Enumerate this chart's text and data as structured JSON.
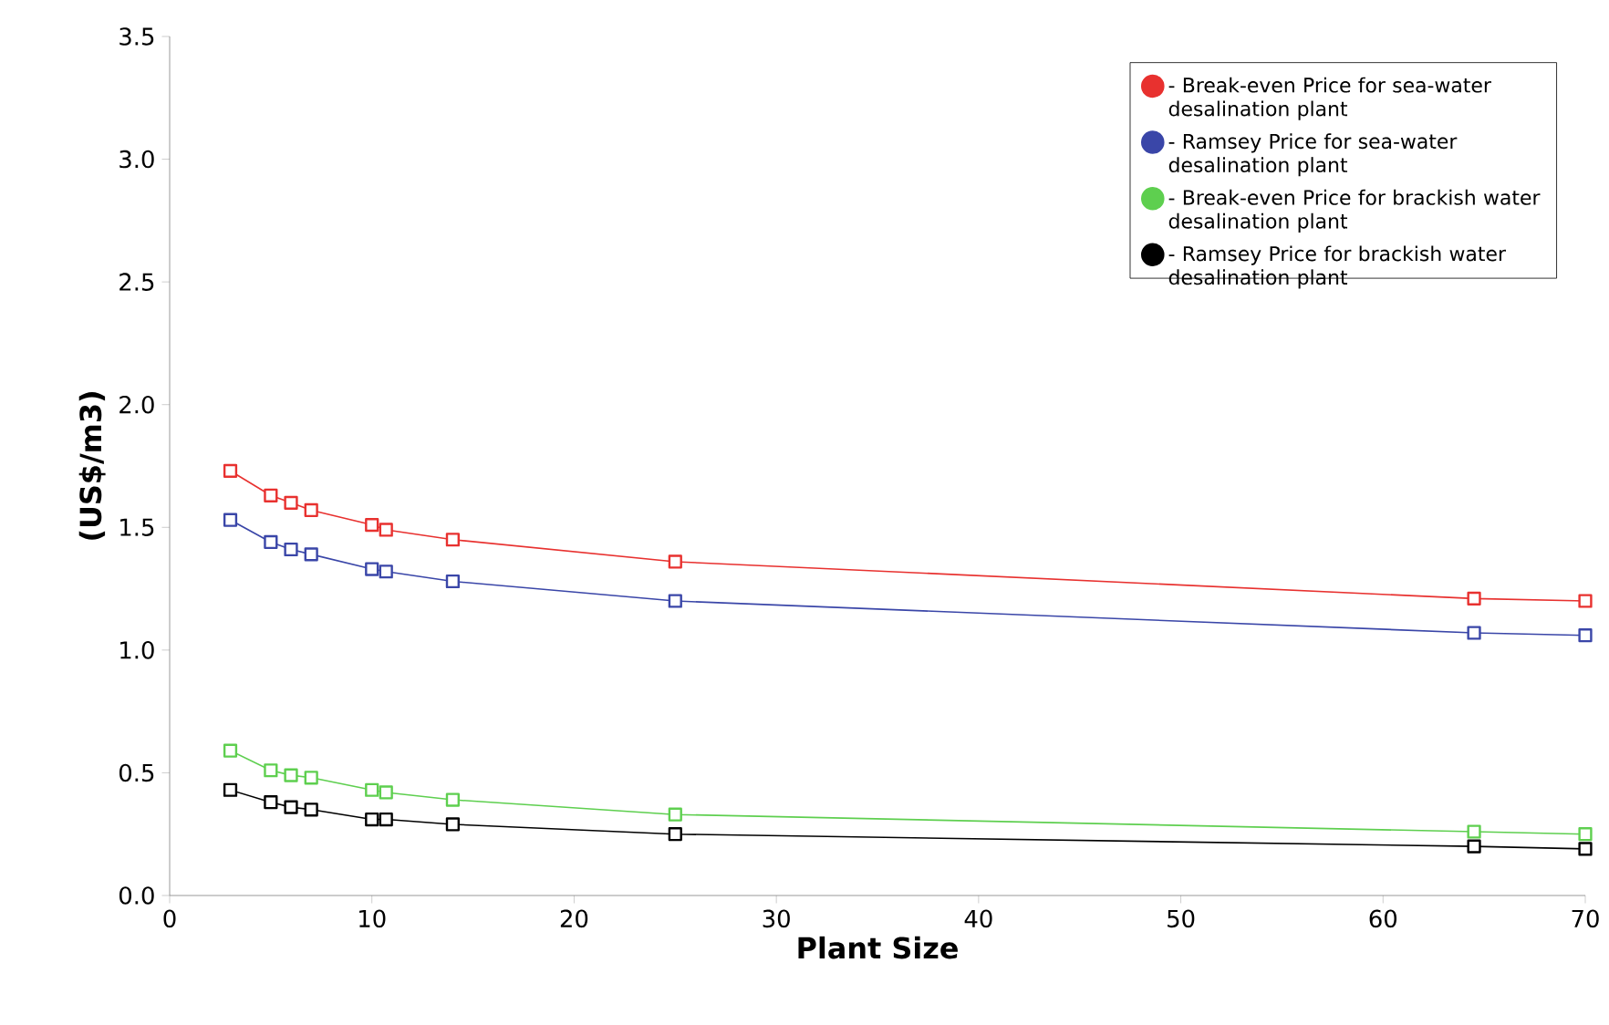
{
  "chart_data": {
    "type": "line",
    "xlabel": "Plant Size",
    "ylabel": "(US$/m3)",
    "x": [
      3,
      5,
      6,
      7,
      10,
      10.7,
      14,
      25,
      64.5,
      70
    ],
    "series": [
      {
        "name": "- Break-even Price for sea-water desalination plant",
        "color": "#e8312f",
        "values": [
          1.73,
          1.63,
          1.6,
          1.57,
          1.51,
          1.49,
          1.45,
          1.36,
          1.21,
          1.2
        ]
      },
      {
        "name": "- Ramsey Price for sea-water desalination plant",
        "color": "#3a46a8",
        "values": [
          1.53,
          1.44,
          1.41,
          1.39,
          1.33,
          1.32,
          1.28,
          1.2,
          1.07,
          1.06
        ]
      },
      {
        "name": "- Break-even Price for brackish water desalination plant",
        "color": "#5ecf4f",
        "values": [
          0.59,
          0.51,
          0.49,
          0.48,
          0.43,
          0.42,
          0.39,
          0.33,
          0.26,
          0.25
        ]
      },
      {
        "name": "- Ramsey Price for brackish water desalination plant",
        "color": "#000000",
        "values": [
          0.43,
          0.38,
          0.36,
          0.35,
          0.31,
          0.31,
          0.29,
          0.25,
          0.2,
          0.19
        ]
      }
    ],
    "xlim": [
      0,
      70
    ],
    "xticks": [
      0,
      10,
      20,
      30,
      40,
      50,
      60,
      70
    ],
    "ylim": [
      0,
      3.5
    ],
    "yticks": [
      {
        "value": 0,
        "label": "0.0"
      },
      {
        "value": 0.5,
        "label": "0.5"
      },
      {
        "value": 1,
        "label": "1.0"
      },
      {
        "value": 1.5,
        "label": "1.5"
      },
      {
        "value": 2,
        "label": "2.0"
      },
      {
        "value": 2.5,
        "label": "2.5"
      },
      {
        "value": 3,
        "label": "3.0"
      },
      {
        "value": 3.5,
        "label": "3.5"
      }
    ],
    "marker": "square",
    "line_style": "solid",
    "legend": "top right",
    "grid": false
  }
}
